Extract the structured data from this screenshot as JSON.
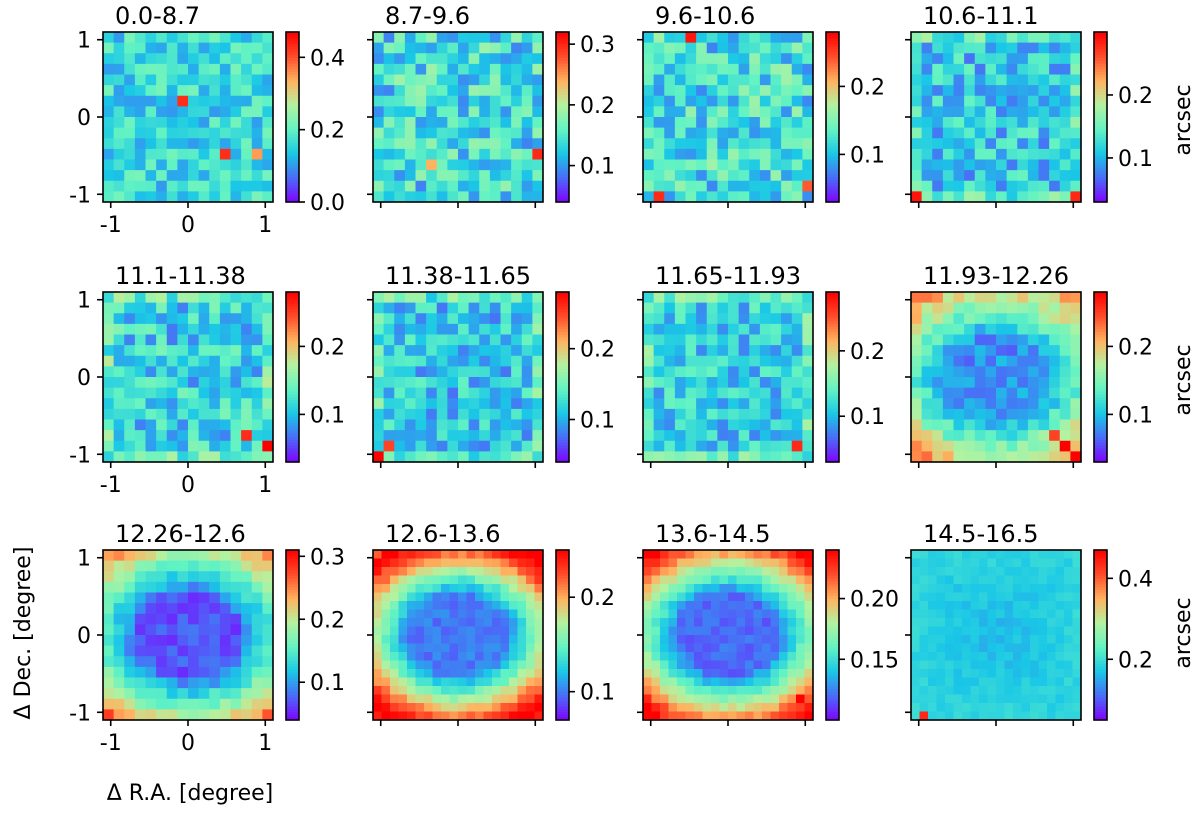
{
  "figure": {
    "xlabel": "Δ R.A. [degree]",
    "ylabel": "Δ Dec. [degree]",
    "colorbar_label": "arcsec",
    "colormap": "rainbow",
    "colormap_stops": [
      "#8000ff",
      "#4b6bf7",
      "#1ac7e6",
      "#63f3c3",
      "#b3f2a0",
      "#ffb360",
      "#ff4d2a",
      "#ff0000"
    ]
  },
  "chart_data": [
    {
      "type": "heatmap",
      "title": "0.0-8.7",
      "grid": 16,
      "xlim": [
        -1.1,
        1.1
      ],
      "ylim": [
        -1.1,
        1.1
      ],
      "xticks": [
        "-1",
        "0",
        "1"
      ],
      "yticks": [
        "-1",
        "0",
        "1"
      ],
      "vmin": 0.0,
      "vmax": 0.47,
      "cbar_ticks": [
        {
          "v": 0.0,
          "label": "0.0"
        },
        {
          "v": 0.2,
          "label": "0.2"
        },
        {
          "v": 0.4,
          "label": "0.4"
        }
      ],
      "pattern": "noise",
      "base": 0.16,
      "amp": 0.06,
      "seed": 1,
      "hot": [
        [
          7,
          6,
          0.43
        ],
        [
          11,
          11,
          0.43
        ],
        [
          14,
          11,
          0.35
        ]
      ]
    },
    {
      "type": "heatmap",
      "title": "8.7-9.6",
      "grid": 16,
      "xlim": [
        -1.1,
        1.1
      ],
      "ylim": [
        -1.1,
        1.1
      ],
      "xticks": [
        "",
        "",
        ""
      ],
      "yticks": [
        "",
        "",
        ""
      ],
      "vmin": 0.04,
      "vmax": 0.32,
      "cbar_ticks": [
        {
          "v": 0.1,
          "label": "0.1"
        },
        {
          "v": 0.2,
          "label": "0.2"
        },
        {
          "v": 0.3,
          "label": "0.3"
        }
      ],
      "pattern": "noise",
      "base": 0.14,
      "amp": 0.05,
      "seed": 2,
      "hot": [
        [
          15,
          11,
          0.3
        ],
        [
          5,
          12,
          0.24
        ]
      ]
    },
    {
      "type": "heatmap",
      "title": "9.6-10.6",
      "grid": 16,
      "xlim": [
        -1.1,
        1.1
      ],
      "ylim": [
        -1.1,
        1.1
      ],
      "xticks": [
        "",
        "",
        ""
      ],
      "yticks": [
        "",
        "",
        ""
      ],
      "vmin": 0.03,
      "vmax": 0.28,
      "cbar_ticks": [
        {
          "v": 0.1,
          "label": "0.1"
        },
        {
          "v": 0.2,
          "label": "0.2"
        }
      ],
      "pattern": "noise",
      "base": 0.12,
      "amp": 0.045,
      "seed": 3,
      "hot": [
        [
          4,
          0,
          0.27
        ],
        [
          1,
          15,
          0.26
        ],
        [
          15,
          14,
          0.24
        ]
      ]
    },
    {
      "type": "heatmap",
      "title": "10.6-11.1",
      "grid": 16,
      "xlim": [
        -1.1,
        1.1
      ],
      "ylim": [
        -1.1,
        1.1
      ],
      "xticks": [
        "",
        "",
        ""
      ],
      "yticks": [
        "",
        "",
        ""
      ],
      "vmin": 0.03,
      "vmax": 0.3,
      "cbar_ticks": [
        {
          "v": 0.1,
          "label": "0.1"
        },
        {
          "v": 0.2,
          "label": "0.2"
        }
      ],
      "pattern": "edge",
      "base": 0.11,
      "amp": 0.04,
      "edge": 0.08,
      "seed": 4,
      "hot": [
        [
          0,
          15,
          0.29
        ],
        [
          15,
          15,
          0.28
        ]
      ]
    },
    {
      "type": "heatmap",
      "title": "11.1-11.38",
      "grid": 16,
      "xlim": [
        -1.1,
        1.1
      ],
      "ylim": [
        -1.1,
        1.1
      ],
      "xticks": [
        "-1",
        "0",
        "1"
      ],
      "yticks": [
        "-1",
        "0",
        "1"
      ],
      "vmin": 0.03,
      "vmax": 0.28,
      "cbar_ticks": [
        {
          "v": 0.1,
          "label": "0.1"
        },
        {
          "v": 0.2,
          "label": "0.2"
        }
      ],
      "pattern": "edge",
      "base": 0.11,
      "amp": 0.04,
      "edge": 0.07,
      "seed": 5,
      "hot": [
        [
          15,
          14,
          0.28
        ],
        [
          13,
          13,
          0.26
        ]
      ]
    },
    {
      "type": "heatmap",
      "title": "11.38-11.65",
      "grid": 16,
      "xlim": [
        -1.1,
        1.1
      ],
      "ylim": [
        -1.1,
        1.1
      ],
      "xticks": [
        "",
        "",
        ""
      ],
      "yticks": [
        "",
        "",
        ""
      ],
      "vmin": 0.04,
      "vmax": 0.28,
      "cbar_ticks": [
        {
          "v": 0.1,
          "label": "0.1"
        },
        {
          "v": 0.2,
          "label": "0.2"
        }
      ],
      "pattern": "edge",
      "base": 0.11,
      "amp": 0.035,
      "edge": 0.08,
      "seed": 6,
      "hot": [
        [
          0,
          15,
          0.28
        ],
        [
          1,
          14,
          0.25
        ]
      ]
    },
    {
      "type": "heatmap",
      "title": "11.65-11.93",
      "grid": 16,
      "xlim": [
        -1.1,
        1.1
      ],
      "ylim": [
        -1.1,
        1.1
      ],
      "xticks": [
        "",
        "",
        ""
      ],
      "yticks": [
        "",
        "",
        ""
      ],
      "vmin": 0.03,
      "vmax": 0.29,
      "cbar_ticks": [
        {
          "v": 0.1,
          "label": "0.1"
        },
        {
          "v": 0.2,
          "label": "0.2"
        }
      ],
      "pattern": "edge",
      "base": 0.11,
      "amp": 0.035,
      "edge": 0.08,
      "seed": 7,
      "hot": [
        [
          14,
          14,
          0.27
        ]
      ]
    },
    {
      "type": "heatmap",
      "title": "11.93-12.26",
      "grid": 16,
      "xlim": [
        -1.1,
        1.1
      ],
      "ylim": [
        -1.1,
        1.1
      ],
      "xticks": [
        "",
        "",
        ""
      ],
      "yticks": [
        "",
        "",
        ""
      ],
      "vmin": 0.03,
      "vmax": 0.28,
      "cbar_ticks": [
        {
          "v": 0.1,
          "label": "0.1"
        },
        {
          "v": 0.2,
          "label": "0.2"
        }
      ],
      "pattern": "radial",
      "base": 0.08,
      "amp": 0.02,
      "edge": 0.12,
      "seed": 8,
      "hot": [
        [
          14,
          14,
          0.28
        ],
        [
          15,
          15,
          0.28
        ],
        [
          13,
          13,
          0.25
        ]
      ]
    },
    {
      "type": "heatmap",
      "title": "12.26-12.6",
      "grid": 16,
      "xlim": [
        -1.1,
        1.1
      ],
      "ylim": [
        -1.1,
        1.1
      ],
      "xticks": [
        "-1",
        "0",
        "1"
      ],
      "yticks": [
        "-1",
        "0",
        "1"
      ],
      "vmin": 0.04,
      "vmax": 0.31,
      "cbar_ticks": [
        {
          "v": 0.1,
          "label": "0.1"
        },
        {
          "v": 0.2,
          "label": "0.2"
        },
        {
          "v": 0.3,
          "label": "0.3"
        }
      ],
      "pattern": "radial",
      "base": 0.07,
      "amp": 0.015,
      "edge": 0.15,
      "seed": 9,
      "hot": [
        [
          0,
          15,
          0.28
        ],
        [
          15,
          15,
          0.27
        ]
      ]
    },
    {
      "type": "heatmap",
      "title": "12.6-13.6",
      "grid": 20,
      "xlim": [
        -1.1,
        1.1
      ],
      "ylim": [
        -1.1,
        1.1
      ],
      "xticks": [
        "",
        "",
        ""
      ],
      "yticks": [
        "",
        "",
        ""
      ],
      "vmin": 0.07,
      "vmax": 0.25,
      "cbar_ticks": [
        {
          "v": 0.1,
          "label": "0.1"
        },
        {
          "v": 0.2,
          "label": "0.2"
        }
      ],
      "pattern": "radial",
      "base": 0.1,
      "amp": 0.008,
      "edge": 0.14,
      "seed": 10,
      "hot": [
        [
          0,
          19,
          0.24
        ],
        [
          19,
          19,
          0.24
        ],
        [
          0,
          0,
          0.22
        ]
      ]
    },
    {
      "type": "heatmap",
      "title": "13.6-14.5",
      "grid": 20,
      "xlim": [
        -1.1,
        1.1
      ],
      "ylim": [
        -1.1,
        1.1
      ],
      "xticks": [
        "",
        "",
        ""
      ],
      "yticks": [
        "",
        "",
        ""
      ],
      "vmin": 0.1,
      "vmax": 0.24,
      "cbar_ticks": [
        {
          "v": 0.15,
          "label": "0.15"
        },
        {
          "v": 0.2,
          "label": "0.20"
        }
      ],
      "pattern": "radial",
      "base": 0.12,
      "amp": 0.006,
      "edge": 0.1,
      "seed": 11,
      "hot": [
        [
          0,
          17,
          0.23
        ],
        [
          0,
          18,
          0.24
        ],
        [
          1,
          18,
          0.23
        ],
        [
          18,
          17,
          0.24
        ]
      ]
    },
    {
      "type": "heatmap",
      "title": "14.5-16.5",
      "grid": 20,
      "xlim": [
        -1.1,
        1.1
      ],
      "ylim": [
        -1.1,
        1.1
      ],
      "xticks": [
        "",
        "",
        ""
      ],
      "yticks": [
        "",
        "",
        ""
      ],
      "vmin": 0.05,
      "vmax": 0.47,
      "cbar_ticks": [
        {
          "v": 0.2,
          "label": "0.2"
        },
        {
          "v": 0.4,
          "label": "0.4"
        }
      ],
      "pattern": "flat",
      "base": 0.16,
      "amp": 0.012,
      "edge": 0.03,
      "seed": 12,
      "hot": [
        [
          1,
          19,
          0.44
        ],
        [
          0,
          0,
          0.2
        ],
        [
          19,
          0,
          0.2
        ]
      ]
    }
  ]
}
